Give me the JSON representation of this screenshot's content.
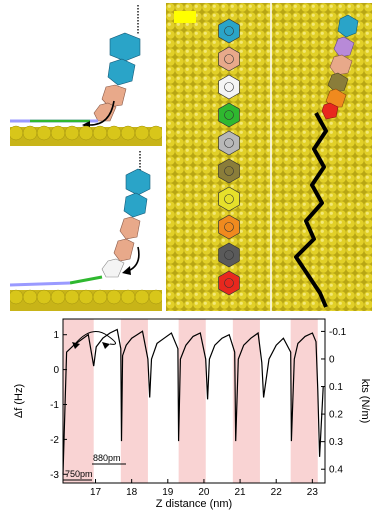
{
  "figure": {
    "scale_bar_color": "#ffff00",
    "molecule_colors": [
      "#2aa4c8",
      "#e8a98a",
      "#f4f4f4",
      "#2fb82f",
      "#b8b8b8",
      "#8a7d3a",
      "#e6e02a",
      "#f08a1e",
      "#5a5a5a",
      "#e8281e"
    ],
    "surface_color": "#d8c61a",
    "trajectory_color": "#000000"
  },
  "chart_data": {
    "type": "line",
    "title": "",
    "xlabel": "Z distance (nm)",
    "ylabel": "Δf (Hz)",
    "y2label": "kts (N/m)",
    "xlim": [
      16.1,
      23.35
    ],
    "ylim": [
      -3.25,
      1.45
    ],
    "xticks": [
      "17",
      "18",
      "19",
      "20",
      "21",
      "22",
      "23"
    ],
    "yticks": [
      "1",
      "0",
      "-1",
      "-2",
      "-3"
    ],
    "y2ticks": [
      "-0.1",
      "0",
      "0.1",
      "0.2",
      "0.3",
      "0.4"
    ],
    "y2lim": [
      -0.145,
      0.45
    ],
    "shaded_bands": [
      [
        16.1,
        16.95
      ],
      [
        17.7,
        18.45
      ],
      [
        19.3,
        20.05
      ],
      [
        20.8,
        21.55
      ],
      [
        22.4,
        23.15
      ]
    ],
    "shade_color": "#f9d3d3",
    "annotations": [
      "750pm",
      "880pm"
    ],
    "series": [
      {
        "x": [
          16.1,
          16.2,
          16.4,
          16.6,
          16.8,
          16.95,
          17.02,
          17.2,
          17.4,
          17.6,
          17.7,
          17.72,
          17.75,
          17.85,
          18.0,
          18.15,
          18.3,
          18.45,
          18.5,
          18.55,
          18.7,
          18.9,
          19.1,
          19.28,
          19.3,
          19.35,
          19.5,
          19.7,
          19.9,
          20.05,
          20.1,
          20.15,
          20.3,
          20.5,
          20.7,
          20.85,
          20.88,
          20.95,
          21.1,
          21.3,
          21.5,
          21.6,
          21.65,
          21.8,
          22.0,
          22.2,
          22.4,
          22.42,
          22.5,
          22.6,
          22.8,
          23.0,
          23.1,
          23.15,
          23.2,
          23.3
        ],
        "y": [
          -3.0,
          0.5,
          0.7,
          0.85,
          1.0,
          0.1,
          0.65,
          0.9,
          1.05,
          1.15,
          0.6,
          -2.05,
          0.4,
          0.7,
          0.9,
          1.0,
          1.1,
          0.3,
          -0.8,
          0.3,
          0.75,
          0.9,
          1.05,
          0.6,
          -2.05,
          0.3,
          0.7,
          0.95,
          1.05,
          0.3,
          -0.85,
          0.3,
          0.7,
          0.9,
          1.0,
          0.5,
          -2.05,
          0.3,
          0.7,
          0.9,
          1.05,
          0.2,
          -0.8,
          0.3,
          0.7,
          0.9,
          0.5,
          -2.05,
          0.3,
          0.75,
          0.95,
          1.05,
          0.8,
          -0.6,
          -2.5,
          -0.5
        ]
      }
    ]
  }
}
